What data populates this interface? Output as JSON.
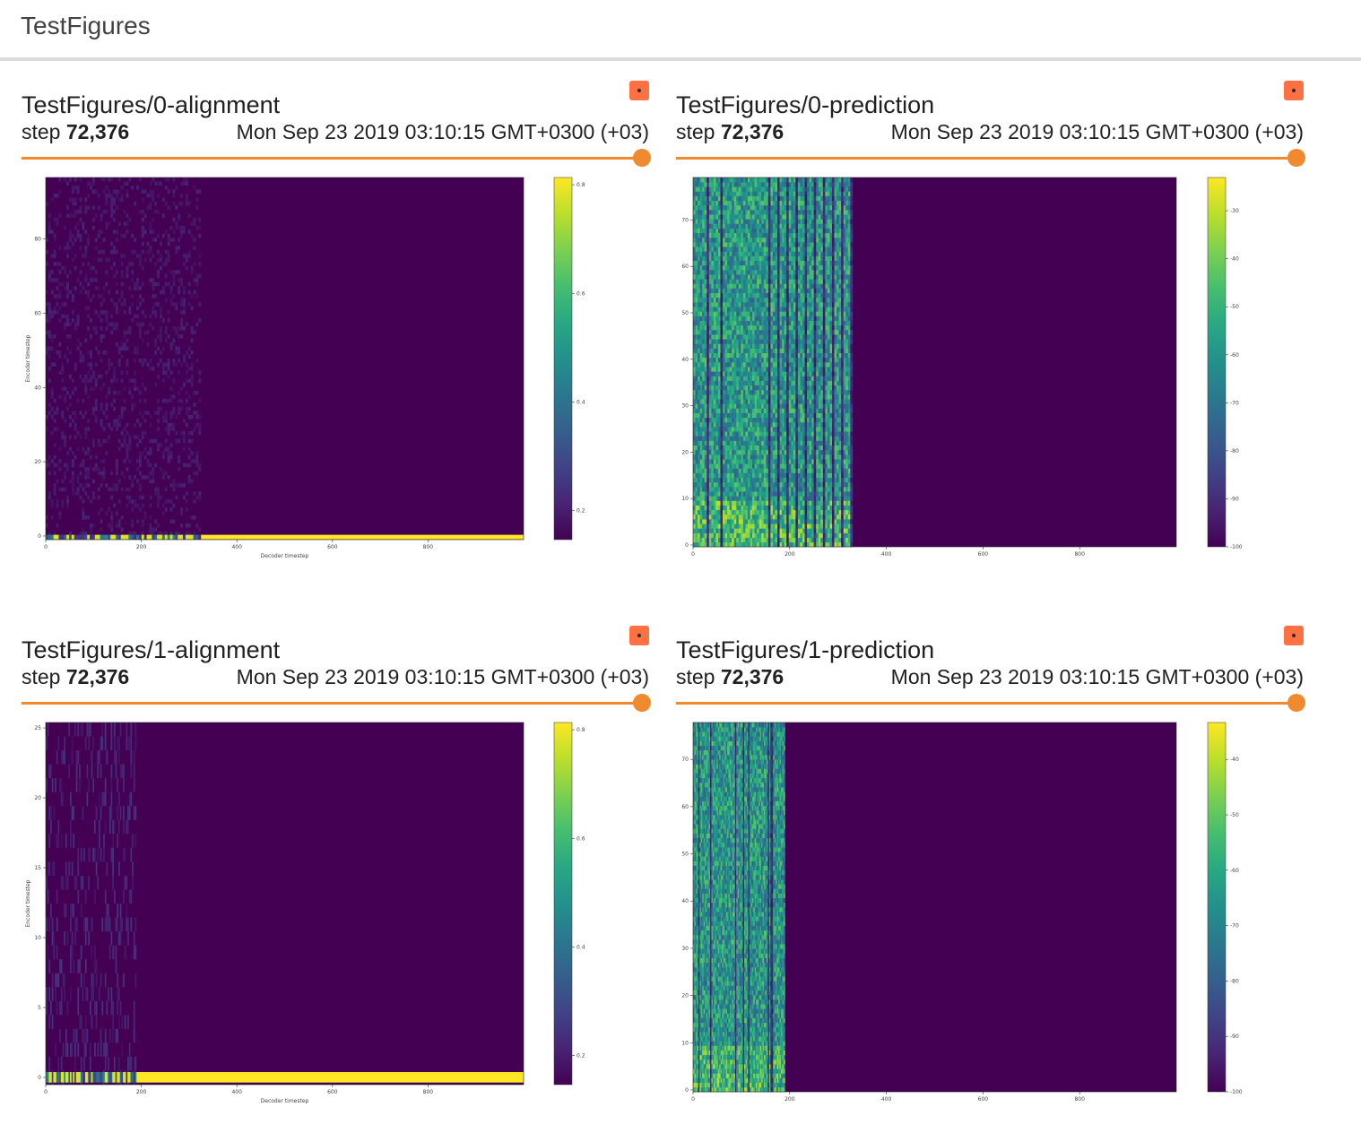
{
  "section": {
    "title": "TestFigures"
  },
  "cards": [
    {
      "title": "TestFigures/0-alignment",
      "step_label": "step",
      "step_value": "72,376",
      "timestamp": "Mon Sep 23 2019 03:10:15 GMT+0300 (+03)",
      "chart_data": {
        "type": "heatmap",
        "xlabel": "Decoder timestep",
        "ylabel": "Encoder timestep",
        "x_ticks": [
          "0",
          "200",
          "400",
          "600",
          "800"
        ],
        "y_ticks": [
          "0",
          "20",
          "40",
          "60",
          "80"
        ],
        "colorbar_ticks": [
          "0.2",
          "0.4",
          "0.6",
          "0.8"
        ]
      }
    },
    {
      "title": "TestFigures/0-prediction",
      "step_label": "step",
      "step_value": "72,376",
      "timestamp": "Mon Sep 23 2019 03:10:15 GMT+0300 (+03)",
      "chart_data": {
        "type": "heatmap",
        "xlabel": "",
        "ylabel": "",
        "x_ticks": [
          "0",
          "200",
          "400",
          "600",
          "800"
        ],
        "y_ticks": [
          "0",
          "10",
          "20",
          "30",
          "40",
          "50",
          "60",
          "70"
        ],
        "colorbar_ticks": [
          "-100",
          "-90",
          "-80",
          "-70",
          "-60",
          "-50",
          "-40",
          "-30"
        ]
      }
    },
    {
      "title": "TestFigures/1-alignment",
      "step_label": "step",
      "step_value": "72,376",
      "timestamp": "Mon Sep 23 2019 03:10:15 GMT+0300 (+03)",
      "chart_data": {
        "type": "heatmap",
        "xlabel": "Decoder timestep",
        "ylabel": "Encoder timestep",
        "x_ticks": [
          "0",
          "200",
          "400",
          "600",
          "800"
        ],
        "y_ticks": [
          "0",
          "5",
          "10",
          "15",
          "20",
          "25"
        ],
        "colorbar_ticks": [
          "0.2",
          "0.4",
          "0.6",
          "0.8"
        ]
      }
    },
    {
      "title": "TestFigures/1-prediction",
      "step_label": "step",
      "step_value": "72,376",
      "timestamp": "Mon Sep 23 2019 03:10:15 GMT+0300 (+03)",
      "chart_data": {
        "type": "heatmap",
        "xlabel": "",
        "ylabel": "",
        "x_ticks": [
          "0",
          "200",
          "400",
          "600",
          "800"
        ],
        "y_ticks": [
          "0",
          "10",
          "20",
          "30",
          "40",
          "50",
          "60",
          "70"
        ],
        "colorbar_ticks": [
          "-100",
          "-90",
          "-80",
          "-70",
          "-60",
          "-50",
          "-40"
        ]
      }
    }
  ],
  "colors": {
    "accent": "#f08a2e",
    "badge": "#ff7043",
    "heatmap_background": "#440154",
    "heatmap_high": "#fde725"
  }
}
